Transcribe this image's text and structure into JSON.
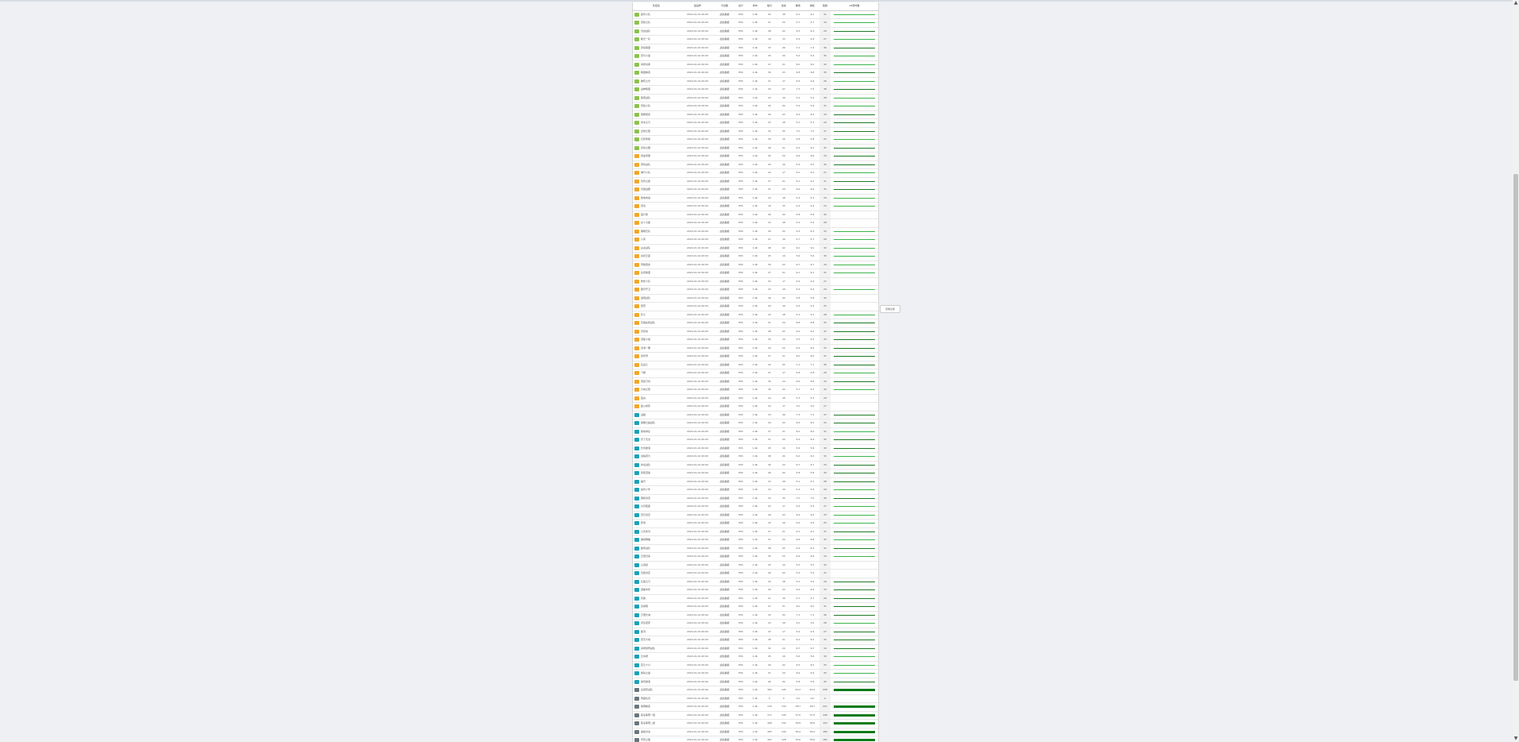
{
  "header": {
    "columns": [
      "队伍名",
      "最后作",
      "平台数",
      "总计",
      "命中",
      "得分",
      "击杀",
      "助攻",
      "排名",
      "奖励",
      "24场均数"
    ]
  },
  "side_button": {
    "label": "查看全部"
  },
  "row_defaults": {
    "time": "2024-01-01 00:00",
    "platform": "战绩播报",
    "c1": "PS5",
    "c2": "1.0k"
  },
  "rows": [
    {
      "name": "疾风小队",
      "group": "green",
      "v1": "22",
      "v2": "18",
      "v3": "6.1",
      "score": "31",
      "bar": "thin"
    },
    {
      "name": "雷霆之队",
      "group": "green",
      "v1": "31",
      "v2": "24",
      "v3": "5.7",
      "score": "34",
      "bar": "thin"
    },
    {
      "name": "天启战队",
      "group": "green",
      "v1": "28",
      "v2": "22",
      "v3": "6.3",
      "score": "29",
      "bar": "dark"
    },
    {
      "name": "极光一队",
      "group": "green",
      "v1": "19",
      "v2": "15",
      "v3": "4.9",
      "score": "27",
      "bar": "thin"
    },
    {
      "name": "赤焰联盟",
      "group": "green",
      "v1": "33",
      "v2": "26",
      "v3": "7.2",
      "score": "36",
      "bar": "dark"
    },
    {
      "name": "苍穹小组",
      "group": "green",
      "v1": "25",
      "v2": "20",
      "v3": "5.4",
      "score": "30",
      "bar": "thin"
    },
    {
      "name": "青锋剑客",
      "group": "green",
      "v1": "27",
      "v2": "21",
      "v3": "6.0",
      "score": "32",
      "bar": "thin"
    },
    {
      "name": "暗夜精英",
      "group": "green",
      "v1": "30",
      "v2": "23",
      "v3": "6.8",
      "score": "35",
      "bar": "dark"
    },
    {
      "name": "破晓之光",
      "group": "green",
      "v1": "21",
      "v2": "17",
      "v3": "4.6",
      "score": "26",
      "bar": "thin"
    },
    {
      "name": "战神联盟",
      "group": "green",
      "v1": "34",
      "v2": "27",
      "v3": "7.5",
      "score": "38",
      "bar": "dark"
    },
    {
      "name": "星辰战队",
      "group": "green",
      "v1": "24",
      "v2": "19",
      "v3": "5.2",
      "score": "28",
      "bar": "thin"
    },
    {
      "name": "烈焰小队",
      "group": "green",
      "v1": "26",
      "v2": "20",
      "v3": "5.9",
      "score": "31",
      "bar": "thin"
    },
    {
      "name": "猎鹰突击",
      "group": "green",
      "v1": "29",
      "v2": "22",
      "v3": "6.4",
      "score": "33",
      "bar": "dark"
    },
    {
      "name": "寒冰之刃",
      "group": "green",
      "v1": "23",
      "v2": "18",
      "v3": "5.1",
      "score": "29",
      "bar": "dark"
    },
    {
      "name": "龙骑士团",
      "group": "green",
      "v1": "32",
      "v2": "25",
      "v3": "7.0",
      "score": "37",
      "bar": "dark"
    },
    {
      "name": "幻影刺客",
      "group": "green",
      "v1": "20",
      "v2": "16",
      "v3": "4.8",
      "score": "25",
      "bar": "thin"
    },
    {
      "name": "风暴之眼",
      "group": "green",
      "v1": "28",
      "v2": "21",
      "v3": "6.2",
      "score": "32",
      "bar": "dark"
    },
    {
      "name": "铁血军团",
      "group": "orange",
      "v1": "30",
      "v2": "24",
      "v3": "6.6",
      "score": "34",
      "bar": "dark"
    },
    {
      "name": "雷鸣战队",
      "group": "orange",
      "v1": "25",
      "v2": "19",
      "v3": "5.5",
      "score": "30",
      "bar": "dark"
    },
    {
      "name": "神行小队",
      "group": "orange",
      "v1": "22",
      "v2": "17",
      "v3": "5.0",
      "score": "27",
      "bar": "thin"
    },
    {
      "name": "烈风之翼",
      "group": "orange",
      "v1": "27",
      "v2": "21",
      "v3": "6.1",
      "score": "31",
      "bar": "dark"
    },
    {
      "name": "天狼战团",
      "group": "orange",
      "v1": "31",
      "v2": "24",
      "v3": "6.9",
      "score": "35",
      "bar": "dark"
    },
    {
      "name": "紫电青霜",
      "group": "orange",
      "v1": "24",
      "v2": "18",
      "v3": "5.3",
      "score": "29",
      "bar": "thin"
    },
    {
      "name": "苍龙",
      "group": "orange",
      "v1": "19",
      "v2": "15",
      "v3": "4.4",
      "score": "24",
      "bar": "thin"
    },
    {
      "name": "夜行者",
      "group": "orange",
      "v1": "26",
      "v2": "20",
      "v3": "5.8",
      "score": "30",
      "bar": "none"
    },
    {
      "name": "北斗七星",
      "group": "orange",
      "v1": "23",
      "v2": "18",
      "v3": "5.2",
      "score": "28",
      "bar": "none"
    },
    {
      "name": "黑曜石队",
      "group": "orange",
      "v1": "29",
      "v2": "22",
      "v3": "6.3",
      "score": "33",
      "bar": "thin"
    },
    {
      "name": "火凤",
      "group": "orange",
      "v1": "21",
      "v2": "16",
      "v3": "4.7",
      "score": "26",
      "bar": "thin"
    },
    {
      "name": "白虎战队",
      "group": "orange",
      "v1": "28",
      "v2": "22",
      "v3": "6.0",
      "score": "32",
      "bar": "thin"
    },
    {
      "name": "冰封王座",
      "group": "orange",
      "v1": "25",
      "v2": "19",
      "v3": "5.6",
      "score": "30",
      "bar": "thin"
    },
    {
      "name": "雪狼突击",
      "group": "orange",
      "v1": "30",
      "v2": "23",
      "v3": "6.7",
      "score": "34",
      "bar": "thin"
    },
    {
      "name": "玄武联盟",
      "group": "orange",
      "v1": "27",
      "v2": "21",
      "v3": "6.1",
      "score": "31",
      "bar": "thin"
    },
    {
      "name": "朱雀小队",
      "group": "orange",
      "v1": "22",
      "v2": "17",
      "v3": "4.9",
      "score": "27",
      "bar": "none"
    },
    {
      "name": "银月守卫",
      "group": "orange",
      "v1": "24",
      "v2": "19",
      "v3": "5.4",
      "score": "29",
      "bar": "thin"
    },
    {
      "name": "金刚战队",
      "group": "orange",
      "v1": "26",
      "v2": "20",
      "v3": "5.8",
      "score": "30",
      "bar": "none"
    },
    {
      "name": "惊雷",
      "group": "orange",
      "v1": "20",
      "v2": "16",
      "v3": "4.5",
      "score": "25",
      "bar": "none"
    },
    {
      "name": "影子",
      "group": "orange",
      "v1": "23",
      "v2": "18",
      "v3": "5.1",
      "score": "28",
      "bar": "thin"
    },
    {
      "name": "无畏先锋战队",
      "group": "orange",
      "v1": "31",
      "v2": "24",
      "v3": "6.8",
      "score": "35",
      "bar": "dark"
    },
    {
      "name": "天际线",
      "group": "orange",
      "v1": "28",
      "v2": "22",
      "v3": "6.2",
      "score": "32",
      "bar": "dark"
    },
    {
      "name": "流星小组",
      "group": "orange",
      "v1": "25",
      "v2": "19",
      "v3": "5.5",
      "score": "30",
      "bar": "dark"
    },
    {
      "name": "沧海一粟",
      "group": "orange",
      "v1": "29",
      "v2": "23",
      "v3": "6.4",
      "score": "33",
      "bar": "dark"
    },
    {
      "name": "暴风雪",
      "group": "orange",
      "v1": "27",
      "v2": "21",
      "v3": "6.0",
      "score": "31",
      "bar": "dark"
    },
    {
      "name": "狂战士",
      "group": "orange",
      "v1": "32",
      "v2": "25",
      "v3": "7.1",
      "score": "36",
      "bar": "dark"
    },
    {
      "name": "飞鹰",
      "group": "orange",
      "v1": "21",
      "v2": "17",
      "v3": "4.8",
      "score": "26",
      "bar": "thin"
    },
    {
      "name": "雷霆万钧",
      "group": "orange",
      "v1": "30",
      "v2": "24",
      "v3": "6.6",
      "score": "34",
      "bar": "dark"
    },
    {
      "name": "大地之怒",
      "group": "orange",
      "v1": "26",
      "v2": "20",
      "v3": "5.7",
      "score": "30",
      "bar": "thin"
    },
    {
      "name": "夜枭",
      "group": "orange",
      "v1": "24",
      "v2": "18",
      "v3": "5.3",
      "score": "29",
      "bar": "none"
    },
    {
      "name": "星火燎原",
      "group": "orange",
      "v1": "22",
      "v2": "17",
      "v3": "5.0",
      "score": "27",
      "bar": "none"
    },
    {
      "name": "战狼",
      "group": "teal",
      "v1": "33",
      "v2": "26",
      "v3": "7.3",
      "score": "37",
      "bar": "dark"
    },
    {
      "name": "荣耀之巅战队",
      "group": "teal",
      "v1": "29",
      "v2": "22",
      "v3": "6.5",
      "score": "33",
      "bar": "dark"
    },
    {
      "name": "绝地求生",
      "group": "teal",
      "v1": "27",
      "v2": "21",
      "v3": "6.0",
      "score": "31",
      "bar": "thin"
    },
    {
      "name": "天下无双",
      "group": "teal",
      "v1": "31",
      "v2": "24",
      "v3": "6.9",
      "score": "35",
      "bar": "dark"
    },
    {
      "name": "长风破浪",
      "group": "teal",
      "v1": "25",
      "v2": "19",
      "v3": "5.6",
      "score": "30",
      "bar": "dark"
    },
    {
      "name": "剑指苍穹",
      "group": "teal",
      "v1": "28",
      "v2": "22",
      "v3": "6.2",
      "score": "32",
      "bar": "thin"
    },
    {
      "name": "青龙战队",
      "group": "teal",
      "v1": "30",
      "v2": "23",
      "v3": "6.7",
      "score": "34",
      "bar": "dark"
    },
    {
      "name": "凤凰涅槃",
      "group": "teal",
      "v1": "26",
      "v2": "20",
      "v3": "5.8",
      "score": "30",
      "bar": "dark"
    },
    {
      "name": "幽灵",
      "group": "teal",
      "v1": "23",
      "v2": "18",
      "v3": "5.1",
      "score": "28",
      "bar": "dark"
    },
    {
      "name": "追风少年",
      "group": "teal",
      "v1": "24",
      "v2": "19",
      "v3": "5.4",
      "score": "29",
      "bar": "thin"
    },
    {
      "name": "钢铁洪流",
      "group": "teal",
      "v1": "32",
      "v2": "25",
      "v3": "7.0",
      "score": "36",
      "bar": "dark"
    },
    {
      "name": "冷月孤星",
      "group": "teal",
      "v1": "22",
      "v2": "17",
      "v3": "4.9",
      "score": "27",
      "bar": "thin"
    },
    {
      "name": "烈日当空",
      "group": "teal",
      "v1": "29",
      "v2": "22",
      "v3": "6.4",
      "score": "33",
      "bar": "thin"
    },
    {
      "name": "碧海",
      "group": "teal",
      "v1": "20",
      "v2": "16",
      "v3": "4.6",
      "score": "25",
      "bar": "thin"
    },
    {
      "name": "九天揽月",
      "group": "teal",
      "v1": "27",
      "v2": "21",
      "v3": "6.1",
      "score": "31",
      "bar": "dark"
    },
    {
      "name": "傲视群雄",
      "group": "teal",
      "v1": "31",
      "v2": "24",
      "v3": "6.8",
      "score": "35",
      "bar": "thin"
    },
    {
      "name": "破军战队",
      "group": "teal",
      "v1": "28",
      "v2": "22",
      "v3": "6.3",
      "score": "32",
      "bar": "dark"
    },
    {
      "name": "王者归来",
      "group": "teal",
      "v1": "30",
      "v2": "23",
      "v3": "6.6",
      "score": "34",
      "bar": "thin"
    },
    {
      "name": "山海经",
      "group": "teal",
      "v1": "25",
      "v2": "19",
      "v3": "5.5",
      "score": "30",
      "bar": "none"
    },
    {
      "name": "无极剑圣",
      "group": "teal",
      "v1": "26",
      "v2": "20",
      "v3": "5.9",
      "score": "31",
      "bar": "none"
    },
    {
      "name": "红莲之刃",
      "group": "teal",
      "v1": "24",
      "v2": "18",
      "v3": "5.2",
      "score": "29",
      "bar": "dark"
    },
    {
      "name": "逐鹿中原",
      "group": "teal",
      "v1": "29",
      "v2": "23",
      "v3": "6.4",
      "score": "33",
      "bar": "dark"
    },
    {
      "name": "天策",
      "group": "teal",
      "v1": "21",
      "v2": "16",
      "v3": "4.7",
      "score": "26",
      "bar": "dark"
    },
    {
      "name": "沧澜阁",
      "group": "teal",
      "v1": "27",
      "v2": "21",
      "v3": "6.0",
      "score": "31",
      "bar": "dark"
    },
    {
      "name": "万里长城",
      "group": "teal",
      "v1": "32",
      "v2": "25",
      "v3": "7.1",
      "score": "36",
      "bar": "dark"
    },
    {
      "name": "浮生若梦",
      "group": "teal",
      "v1": "23",
      "v2": "18",
      "v3": "5.0",
      "score": "28",
      "bar": "thin"
    },
    {
      "name": "星河",
      "group": "teal",
      "v1": "22",
      "v2": "17",
      "v3": "4.9",
      "score": "27",
      "bar": "dark"
    },
    {
      "name": "苍茫大地",
      "group": "teal",
      "v1": "28",
      "v2": "21",
      "v3": "6.2",
      "score": "32",
      "bar": "dark"
    },
    {
      "name": "冲锋陷阵战队",
      "group": "teal",
      "v1": "30",
      "v2": "24",
      "v3": "6.7",
      "score": "34",
      "bar": "dark"
    },
    {
      "name": "云中君",
      "group": "teal",
      "v1": "25",
      "v2": "19",
      "v3": "5.6",
      "score": "30",
      "bar": "thin"
    },
    {
      "name": "燕云十六",
      "group": "teal",
      "v1": "29",
      "v2": "22",
      "v3": "6.5",
      "score": "33",
      "bar": "thin"
    },
    {
      "name": "紫禁之巅",
      "group": "teal",
      "v1": "31",
      "v2": "24",
      "v3": "6.9",
      "score": "35",
      "bar": "thin"
    },
    {
      "name": "乘风破浪",
      "group": "teal",
      "v1": "26",
      "v2": "20",
      "v3": "5.8",
      "score": "30",
      "bar": "dark"
    },
    {
      "name": "总冠军战队",
      "group": "gray",
      "v1": "182",
      "v2": "145",
      "v3": "40.2",
      "score": "208",
      "bar": "thick"
    },
    {
      "name": "预备队员",
      "group": "gray",
      "v1": "0",
      "v2": "0",
      "v3": "0.0",
      "score": "0",
      "bar": "none"
    },
    {
      "name": "联赛精英",
      "group": "gray",
      "v1": "176",
      "v2": "139",
      "v3": "38.7",
      "score": "201",
      "bar": "thick"
    },
    {
      "name": "职业联赛一组",
      "group": "gray",
      "v1": "171",
      "v2": "135",
      "v3": "37.5",
      "score": "196",
      "bar": "thick"
    },
    {
      "name": "职业联赛二组",
      "group": "gray",
      "v1": "168",
      "v2": "132",
      "v3": "36.9",
      "score": "192",
      "bar": "thick"
    },
    {
      "name": "巅峰对决",
      "group": "gray",
      "v1": "165",
      "v2": "130",
      "v3": "36.2",
      "score": "189",
      "bar": "thick"
    },
    {
      "name": "传奇之路",
      "group": "gray",
      "v1": "162",
      "v2": "128",
      "v3": "35.6",
      "score": "185",
      "bar": "thick"
    },
    {
      "name": "王牌特战队",
      "group": "gray",
      "v1": "158",
      "v2": "125",
      "v3": "34.8",
      "score": "181",
      "bar": "orange"
    },
    {
      "name": "荣誉殿堂",
      "group": "gray",
      "v1": "155",
      "v2": "122",
      "v3": "34.1",
      "score": "178",
      "bar": "thick"
    },
    {
      "name": "终极挑战者",
      "group": "gray",
      "v1": "151",
      "v2": "119",
      "v3": "33.3",
      "score": "173",
      "bar": "thick"
    },
    {
      "name": "新秀选手",
      "group": "gray",
      "v1": "24",
      "v2": "19",
      "v3": "5.3",
      "score": "28",
      "bar": "none"
    }
  ],
  "colors": {
    "green": "#8bc34a",
    "orange": "#f5a623",
    "teal": "#17a2b8",
    "gray": "#6c757d",
    "bar": "#3cb44b",
    "bar_dark": "#0d7a1a",
    "bar_orange": "#f0a500"
  }
}
